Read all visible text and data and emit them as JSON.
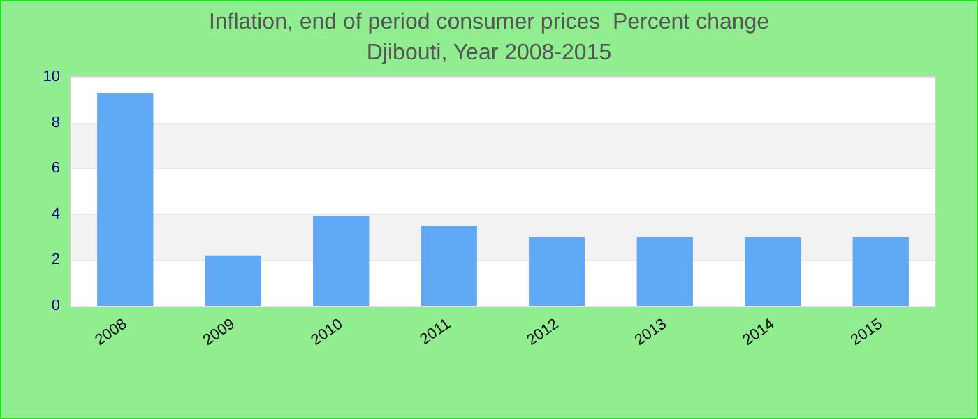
{
  "chart_data": {
    "type": "bar",
    "title": "Inflation, end of period consumer prices  Percent change",
    "subtitle": "Djibouti, Year 2008-2015",
    "categories": [
      "2008",
      "2009",
      "2010",
      "2011",
      "2012",
      "2013",
      "2014",
      "2015"
    ],
    "values": [
      9.3,
      2.2,
      3.9,
      3.5,
      3.0,
      3.0,
      3.0,
      3.0
    ],
    "color": "#62a9f5",
    "ylim": [
      0,
      10
    ],
    "yticks": [
      0,
      2,
      4,
      6,
      8,
      10
    ],
    "grid": "y"
  }
}
